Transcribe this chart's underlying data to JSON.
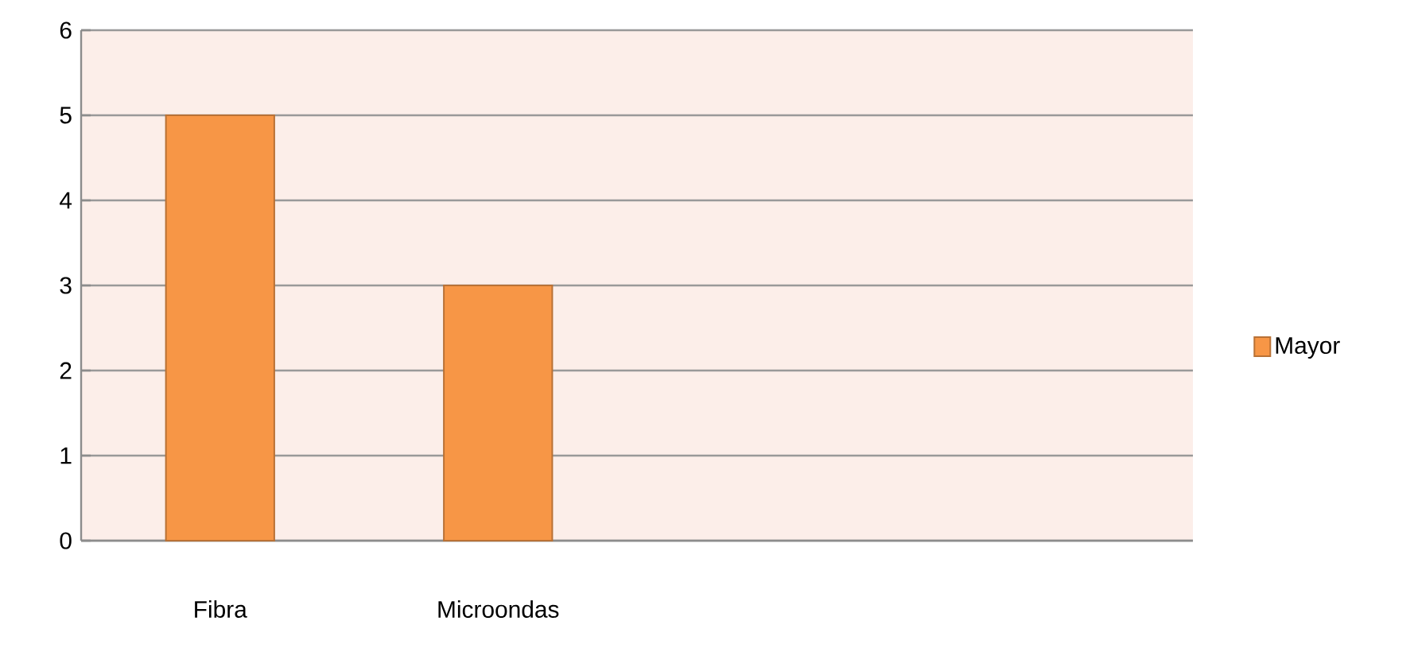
{
  "chart_data": {
    "type": "bar",
    "categories": [
      "Fibra",
      "Microondas",
      null,
      null
    ],
    "series": [
      {
        "name": "Mayor",
        "color": "#f79646",
        "values": [
          5,
          3,
          null,
          null
        ]
      }
    ],
    "ylim": [
      0,
      6
    ],
    "yticks": [
      0,
      1,
      2,
      3,
      4,
      5,
      6
    ],
    "grid": "y",
    "legend": "right"
  }
}
